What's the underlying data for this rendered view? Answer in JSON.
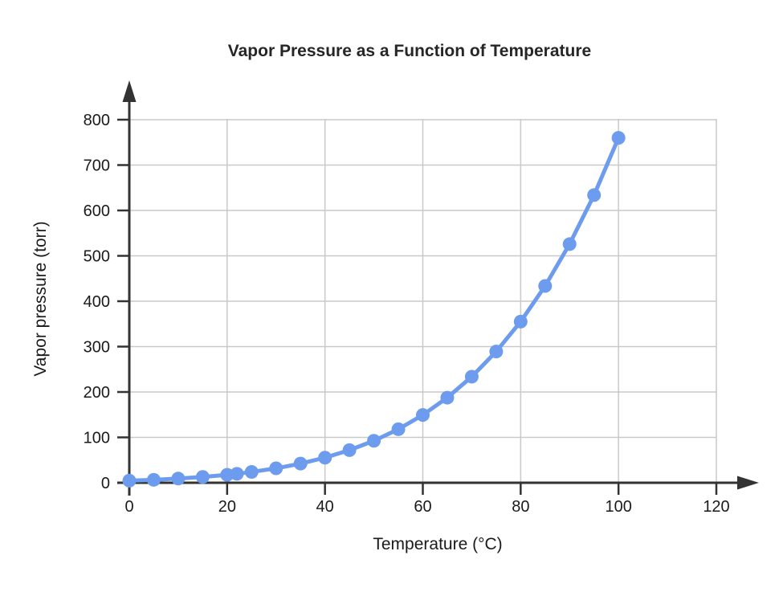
{
  "page": {
    "background": "#ffffff"
  },
  "chart_data": {
    "type": "line",
    "title": "Vapor Pressure as a Function of Temperature",
    "xlabel": "Temperature (°C)",
    "ylabel": "Vapor pressure (torr)",
    "x": [
      0,
      5,
      10,
      15,
      20,
      22,
      25,
      30,
      35,
      40,
      45,
      50,
      55,
      60,
      65,
      70,
      75,
      80,
      85,
      90,
      95,
      100
    ],
    "y": [
      4.6,
      6.5,
      9.2,
      12.8,
      17.5,
      19.8,
      23.8,
      31.8,
      42.2,
      55.3,
      71.9,
      92.5,
      118.0,
      149.4,
      187.5,
      233.7,
      289.1,
      355.1,
      433.6,
      525.8,
      633.9,
      760.0
    ],
    "x_ticks": [
      0,
      20,
      40,
      60,
      80,
      100,
      120
    ],
    "y_ticks": [
      0,
      100,
      200,
      300,
      400,
      500,
      600,
      700,
      800
    ],
    "xlim": [
      0,
      120
    ],
    "ylim": [
      0,
      800
    ],
    "grid": true,
    "legend": "none",
    "marker": "circle",
    "line_style": "solid",
    "colors": {
      "series": "#6d9cef",
      "axis": "#333333",
      "grid": "#c9c9c9",
      "tick_text": "#1a1a1a",
      "title_text": "#262626"
    }
  }
}
